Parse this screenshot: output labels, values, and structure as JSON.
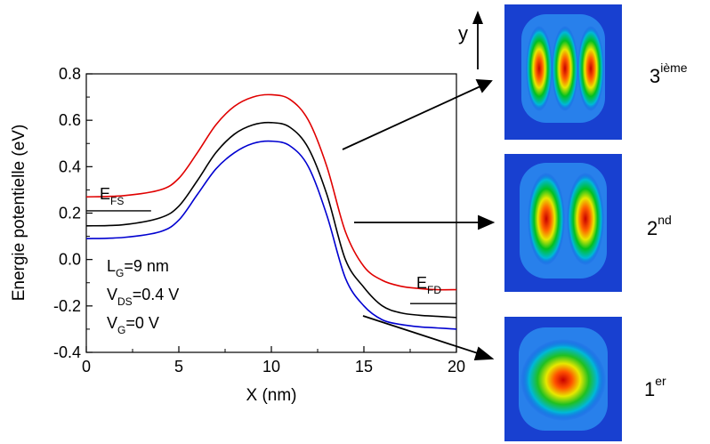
{
  "chart_data": {
    "type": "line",
    "xlabel": "X (nm)",
    "ylabel": "Energie potentielle (eV)",
    "xlim": [
      0,
      20
    ],
    "ylim": [
      -0.4,
      0.8
    ],
    "x_ticks": [
      "0",
      "5",
      "10",
      "15",
      "20"
    ],
    "y_ticks": [
      "-0.4",
      "-0.2",
      "0.0",
      "0.2",
      "0.4",
      "0.6",
      "0.8"
    ],
    "grid": false,
    "series": [
      {
        "color": "#e00000",
        "x": [
          0,
          2,
          4,
          5,
          6,
          7,
          8,
          9,
          10,
          11,
          12,
          13,
          14,
          15,
          16,
          17,
          18,
          19,
          20
        ],
        "y": [
          0.27,
          0.275,
          0.3,
          0.35,
          0.46,
          0.58,
          0.66,
          0.7,
          0.71,
          0.69,
          0.6,
          0.4,
          0.12,
          -0.03,
          -0.09,
          -0.115,
          -0.125,
          -0.13,
          -0.13
        ]
      },
      {
        "color": "#000000",
        "x": [
          0,
          2,
          4,
          5,
          6,
          7,
          8,
          9,
          10,
          11,
          12,
          13,
          14,
          15,
          16,
          17,
          18,
          19,
          20
        ],
        "y": [
          0.145,
          0.15,
          0.18,
          0.23,
          0.34,
          0.46,
          0.54,
          0.58,
          0.59,
          0.57,
          0.48,
          0.28,
          0.0,
          -0.12,
          -0.2,
          -0.23,
          -0.24,
          -0.245,
          -0.25
        ]
      },
      {
        "color": "#0000d0",
        "x": [
          0,
          2,
          4,
          5,
          6,
          7,
          8,
          9,
          10,
          11,
          12,
          13,
          14,
          15,
          16,
          17,
          18,
          19,
          20
        ],
        "y": [
          0.09,
          0.095,
          0.12,
          0.17,
          0.28,
          0.39,
          0.46,
          0.5,
          0.51,
          0.49,
          0.4,
          0.19,
          -0.08,
          -0.2,
          -0.26,
          -0.28,
          -0.29,
          -0.295,
          -0.3
        ]
      }
    ],
    "fermi_levels": [
      {
        "x": [
          0,
          3.5
        ],
        "y": 0.21
      },
      {
        "x": [
          17.5,
          20
        ],
        "y": -0.19
      }
    ],
    "annotations": {
      "efs_main": "E",
      "efs_sub": "FS",
      "efd_main": "E",
      "efd_sub": "FD",
      "lg_main": "L",
      "lg_sub": "G",
      "lg_rest": "=9 nm",
      "vds_main": "V",
      "vds_sub": "DS",
      "vds_rest": "=0.4 V",
      "vg_main": "V",
      "vg_sub": "G",
      "vg_rest": "=0 V"
    }
  },
  "insets": {
    "axis_label": "y",
    "states": [
      {
        "number": "3",
        "suffix": "ième",
        "lobes": 3
      },
      {
        "number": "2",
        "suffix": "nd",
        "lobes": 2
      },
      {
        "number": "1",
        "suffix": "er",
        "lobes": 1
      }
    ]
  }
}
